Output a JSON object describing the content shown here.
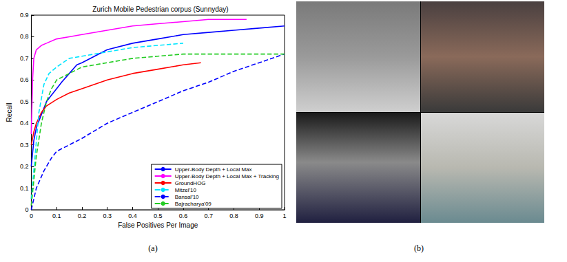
{
  "chart_data": {
    "type": "line",
    "title": "Zurich Mobile Pedestrian corpus (Sunnyday)",
    "x_label": "False Positives Per Image",
    "y_label": "Recall",
    "xlim": [
      0,
      1
    ],
    "xticks": [
      0,
      0.1,
      0.2,
      0.3,
      0.4,
      0.5,
      0.6,
      0.7,
      0.8,
      0.9,
      1
    ],
    "ylim": [
      0,
      0.9
    ],
    "yticks": [
      0,
      0.1,
      0.2,
      0.3,
      0.4,
      0.5,
      0.6,
      0.7,
      0.8,
      0.9
    ],
    "grid": false,
    "legend": "lower right",
    "series": [
      {
        "name": "Upper-Body Depth + Local Max",
        "color": "#0000ff",
        "line_style": "solid",
        "x": [
          0,
          0.01,
          0.02,
          0.04,
          0.06,
          0.08,
          0.1,
          0.12,
          0.15,
          0.18,
          0.2,
          0.25,
          0.3,
          0.4,
          0.5,
          0.6,
          0.7,
          0.8,
          0.9,
          1.0
        ],
        "values": [
          0.2,
          0.32,
          0.38,
          0.44,
          0.5,
          0.53,
          0.56,
          0.59,
          0.63,
          0.67,
          0.68,
          0.71,
          0.74,
          0.77,
          0.79,
          0.81,
          0.82,
          0.83,
          0.84,
          0.85
        ]
      },
      {
        "name": "Upper-Body Depth + Local Max + Tracking",
        "color": "#ff00ff",
        "line_style": "solid",
        "x": [
          0,
          0.005,
          0.01,
          0.02,
          0.04,
          0.06,
          0.1,
          0.15,
          0.2,
          0.3,
          0.4,
          0.5,
          0.6,
          0.7,
          0.8,
          0.85
        ],
        "values": [
          0.35,
          0.6,
          0.7,
          0.74,
          0.76,
          0.77,
          0.79,
          0.8,
          0.81,
          0.83,
          0.85,
          0.86,
          0.87,
          0.88,
          0.88,
          0.88
        ]
      },
      {
        "name": "GroundHOG",
        "color": "#ff0000",
        "line_style": "solid",
        "x": [
          0,
          0.01,
          0.02,
          0.04,
          0.06,
          0.1,
          0.15,
          0.2,
          0.3,
          0.4,
          0.5,
          0.6,
          0.67
        ],
        "values": [
          0.3,
          0.36,
          0.4,
          0.45,
          0.48,
          0.51,
          0.54,
          0.56,
          0.6,
          0.63,
          0.65,
          0.67,
          0.68
        ]
      },
      {
        "name": "Mitzel'10",
        "color": "#00e5ff",
        "line_style": "dashed",
        "x": [
          0,
          0.03,
          0.05,
          0.07,
          0.1,
          0.15,
          0.2,
          0.3,
          0.4,
          0.5,
          0.6
        ],
        "values": [
          0.05,
          0.45,
          0.58,
          0.63,
          0.66,
          0.7,
          0.71,
          0.73,
          0.75,
          0.76,
          0.77
        ]
      },
      {
        "name": "Bansal'10",
        "color": "#0000ff",
        "line_style": "dashed",
        "x": [
          0,
          0.02,
          0.05,
          0.08,
          0.1,
          0.15,
          0.2,
          0.3,
          0.4,
          0.5,
          0.6,
          0.7,
          0.8,
          0.9,
          1.0
        ],
        "values": [
          0,
          0.1,
          0.18,
          0.24,
          0.27,
          0.3,
          0.33,
          0.4,
          0.45,
          0.5,
          0.55,
          0.59,
          0.64,
          0.68,
          0.72
        ]
      },
      {
        "name": "Bajracharya'09",
        "color": "#22cc22",
        "line_style": "dashed",
        "x": [
          0,
          0.02,
          0.04,
          0.06,
          0.08,
          0.1,
          0.15,
          0.2,
          0.3,
          0.4,
          0.5,
          0.6,
          0.8,
          1.0
        ],
        "values": [
          0.02,
          0.25,
          0.4,
          0.5,
          0.56,
          0.6,
          0.63,
          0.66,
          0.68,
          0.7,
          0.71,
          0.72,
          0.72,
          0.72
        ]
      }
    ]
  },
  "captions": [
    "(a)",
    "(b)"
  ]
}
